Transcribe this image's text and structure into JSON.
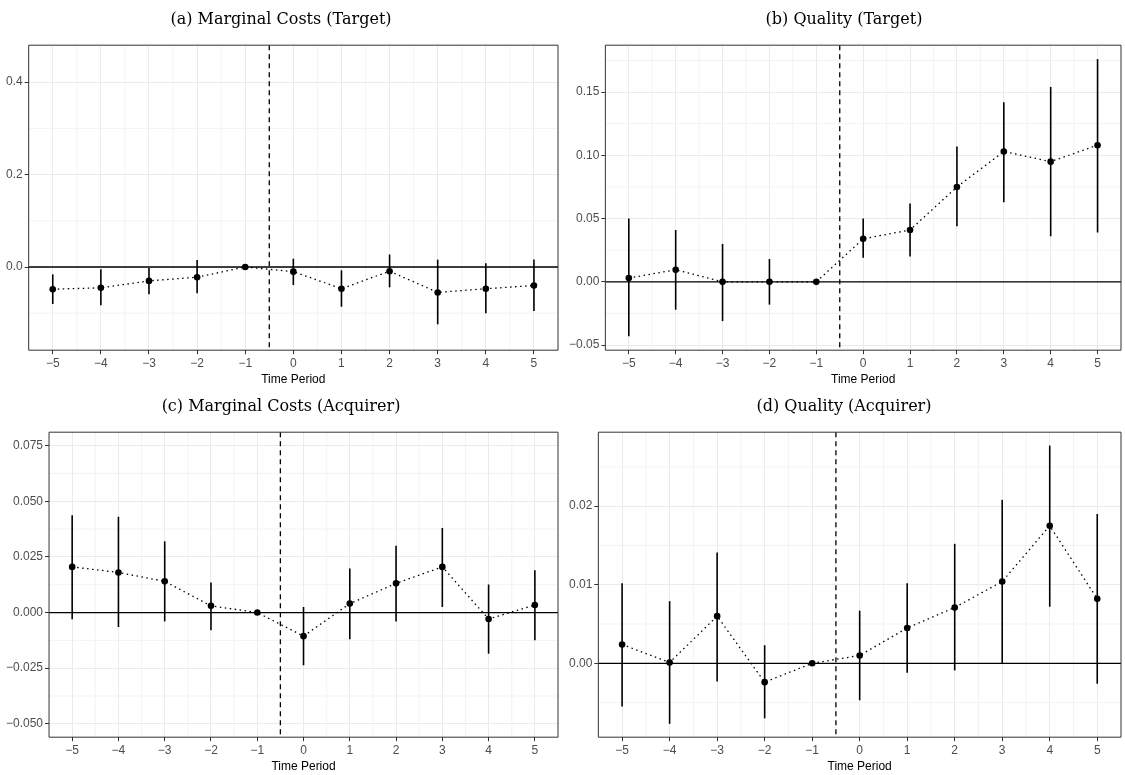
{
  "chart_data": [
    {
      "type": "line",
      "title": "(a) Marginal Costs (Target)",
      "xlabel": "Time Period",
      "x": [
        -5,
        -4,
        -3,
        -2,
        -1,
        0,
        1,
        2,
        3,
        4,
        5
      ],
      "xlim": [
        -5.5,
        5.5
      ],
      "xticks": [
        {
          "value": -5,
          "label": "−5"
        },
        {
          "value": -4,
          "label": "−4"
        },
        {
          "value": -3,
          "label": "−3"
        },
        {
          "value": -2,
          "label": "−2"
        },
        {
          "value": -1,
          "label": "−1"
        },
        0,
        1,
        2,
        3,
        4,
        5
      ],
      "ylim": [
        -0.18,
        0.48
      ],
      "yticks": [
        {
          "value": 0,
          "label": "0.0"
        },
        0.2,
        0.4
      ],
      "grid": true,
      "legend": false,
      "marker": "circle",
      "line_style": "dotted",
      "series": [
        {
          "color": "#000000",
          "values": [
            -0.048,
            -0.045,
            -0.03,
            -0.022,
            0,
            -0.01,
            -0.047,
            -0.009,
            -0.055,
            -0.047,
            -0.04
          ],
          "errors": [
            [
              -0.08,
              -0.016
            ],
            [
              -0.083,
              -0.005
            ],
            [
              -0.059,
              -0.002
            ],
            [
              -0.057,
              0.015
            ],
            null,
            [
              -0.039,
              0.018
            ],
            [
              -0.086,
              -0.007
            ],
            [
              -0.044,
              0.027
            ],
            [
              -0.124,
              0.016
            ],
            [
              -0.1,
              0.008
            ],
            [
              -0.095,
              0.016
            ]
          ]
        }
      ],
      "ref_lines": [
        {
          "axis": "y",
          "value": 0,
          "color": "#000000",
          "line_style": "solid"
        },
        {
          "axis": "x",
          "value": -0.5,
          "color": "#000000",
          "line_style": "dashed"
        }
      ]
    },
    {
      "type": "line",
      "title": "(b) Quality (Target)",
      "xlabel": "Time Period",
      "x": [
        -5,
        -4,
        -3,
        -2,
        -1,
        0,
        1,
        2,
        3,
        4,
        5
      ],
      "xlim": [
        -5.5,
        5.5
      ],
      "xticks": [
        {
          "value": -5,
          "label": "−5"
        },
        {
          "value": -4,
          "label": "−4"
        },
        {
          "value": -3,
          "label": "−3"
        },
        {
          "value": -2,
          "label": "−2"
        },
        {
          "value": -1,
          "label": "−1"
        },
        0,
        1,
        2,
        3,
        4,
        5
      ],
      "ylim": [
        -0.054,
        0.187
      ],
      "yticks": [
        {
          "value": -0.05,
          "label": "−0.05"
        },
        {
          "value": 0,
          "label": "0.00"
        },
        0.05,
        {
          "value": 0.1,
          "label": "0.10"
        },
        0.15
      ],
      "grid": true,
      "legend": false,
      "marker": "circle",
      "line_style": "dotted",
      "series": [
        {
          "color": "#000000",
          "values": [
            0.003,
            0.0096,
            0,
            0,
            0,
            0.034,
            0.041,
            0.075,
            0.103,
            0.095,
            0.108
          ],
          "errors": [
            [
              -0.043,
              0.05
            ],
            [
              -0.022,
              0.041
            ],
            [
              -0.031,
              0.03
            ],
            [
              -0.018,
              0.018
            ],
            null,
            [
              0.019,
              0.05
            ],
            [
              0.02,
              0.062
            ],
            [
              0.044,
              0.107
            ],
            [
              0.063,
              0.142
            ],
            [
              0.036,
              0.154
            ],
            [
              0.039,
              0.176
            ]
          ]
        }
      ],
      "ref_lines": [
        {
          "axis": "y",
          "value": 0,
          "color": "#000000",
          "line_style": "solid"
        },
        {
          "axis": "x",
          "value": -0.5,
          "color": "#000000",
          "line_style": "dashed"
        }
      ]
    },
    {
      "type": "line",
      "title": "(c) Marginal Costs (Acquirer)",
      "xlabel": "Time Period",
      "x": [
        -5,
        -4,
        -3,
        -2,
        -1,
        0,
        1,
        2,
        3,
        4,
        5
      ],
      "xlim": [
        -5.5,
        5.5
      ],
      "xticks": [
        {
          "value": -5,
          "label": "−5"
        },
        {
          "value": -4,
          "label": "−4"
        },
        {
          "value": -3,
          "label": "−3"
        },
        {
          "value": -2,
          "label": "−2"
        },
        {
          "value": -1,
          "label": "−1"
        },
        0,
        1,
        2,
        3,
        4,
        5
      ],
      "ylim": [
        -0.056,
        0.081
      ],
      "yticks": [
        {
          "value": -0.05,
          "label": "−0.050"
        },
        {
          "value": -0.025,
          "label": "−0.025"
        },
        {
          "value": 0,
          "label": "0.000"
        },
        0.025,
        {
          "value": 0.05,
          "label": "0.050"
        },
        0.075
      ],
      "grid": true,
      "legend": false,
      "marker": "circle",
      "line_style": "dotted",
      "series": [
        {
          "color": "#000000",
          "values": [
            0.0205,
            0.018,
            0.014,
            0.003,
            0,
            -0.0106,
            0.004,
            0.0131,
            0.0205,
            -0.0029,
            0.0034
          ],
          "errors": [
            [
              -0.003,
              0.0437
            ],
            [
              -0.0065,
              0.043
            ],
            [
              -0.004,
              0.032
            ],
            [
              -0.008,
              0.0135
            ],
            null,
            [
              -0.0237,
              0.0025
            ],
            [
              -0.012,
              0.0198
            ],
            [
              -0.004,
              0.03
            ],
            [
              0.0025,
              0.038
            ],
            [
              -0.0185,
              0.0126
            ],
            [
              -0.0124,
              0.019
            ]
          ]
        }
      ],
      "ref_lines": [
        {
          "axis": "y",
          "value": 0,
          "color": "#000000",
          "line_style": "solid"
        },
        {
          "axis": "x",
          "value": -0.5,
          "color": "#000000",
          "line_style": "dashed"
        }
      ]
    },
    {
      "type": "line",
      "title": "(d) Quality (Acquirer)",
      "xlabel": "Time Period",
      "x": [
        -5,
        -4,
        -3,
        -2,
        -1,
        0,
        1,
        2,
        3,
        4,
        5
      ],
      "xlim": [
        -5.5,
        5.5
      ],
      "xticks": [
        {
          "value": -5,
          "label": "−5"
        },
        {
          "value": -4,
          "label": "−4"
        },
        {
          "value": -3,
          "label": "−3"
        },
        {
          "value": -2,
          "label": "−2"
        },
        {
          "value": -1,
          "label": "−1"
        },
        0,
        1,
        2,
        3,
        4,
        5
      ],
      "ylim": [
        -0.0094,
        0.0294
      ],
      "yticks": [
        {
          "value": 0,
          "label": "0.00"
        },
        0.01,
        0.02
      ],
      "grid": true,
      "legend": false,
      "marker": "circle",
      "line_style": "dotted",
      "series": [
        {
          "color": "#000000",
          "values": [
            0.0024,
            0.0001,
            0.006,
            -0.0024,
            0,
            0.001,
            0.0045,
            0.0071,
            0.0104,
            0.0175,
            0.0082
          ],
          "errors": [
            [
              -0.0055,
              0.0102
            ],
            [
              -0.0077,
              0.0079
            ],
            [
              -0.0023,
              0.0141
            ],
            [
              -0.007,
              0.0023
            ],
            null,
            [
              -0.0047,
              0.0067
            ],
            [
              -0.0012,
              0.0102
            ],
            [
              -0.0009,
              0.0152
            ],
            [
              0,
              0.0208
            ],
            [
              0.0072,
              0.0277
            ],
            [
              -0.0026,
              0.019
            ]
          ]
        }
      ],
      "ref_lines": [
        {
          "axis": "y",
          "value": 0,
          "color": "#000000",
          "line_style": "solid"
        },
        {
          "axis": "x",
          "value": -0.5,
          "color": "#000000",
          "line_style": "dashed"
        }
      ]
    }
  ]
}
